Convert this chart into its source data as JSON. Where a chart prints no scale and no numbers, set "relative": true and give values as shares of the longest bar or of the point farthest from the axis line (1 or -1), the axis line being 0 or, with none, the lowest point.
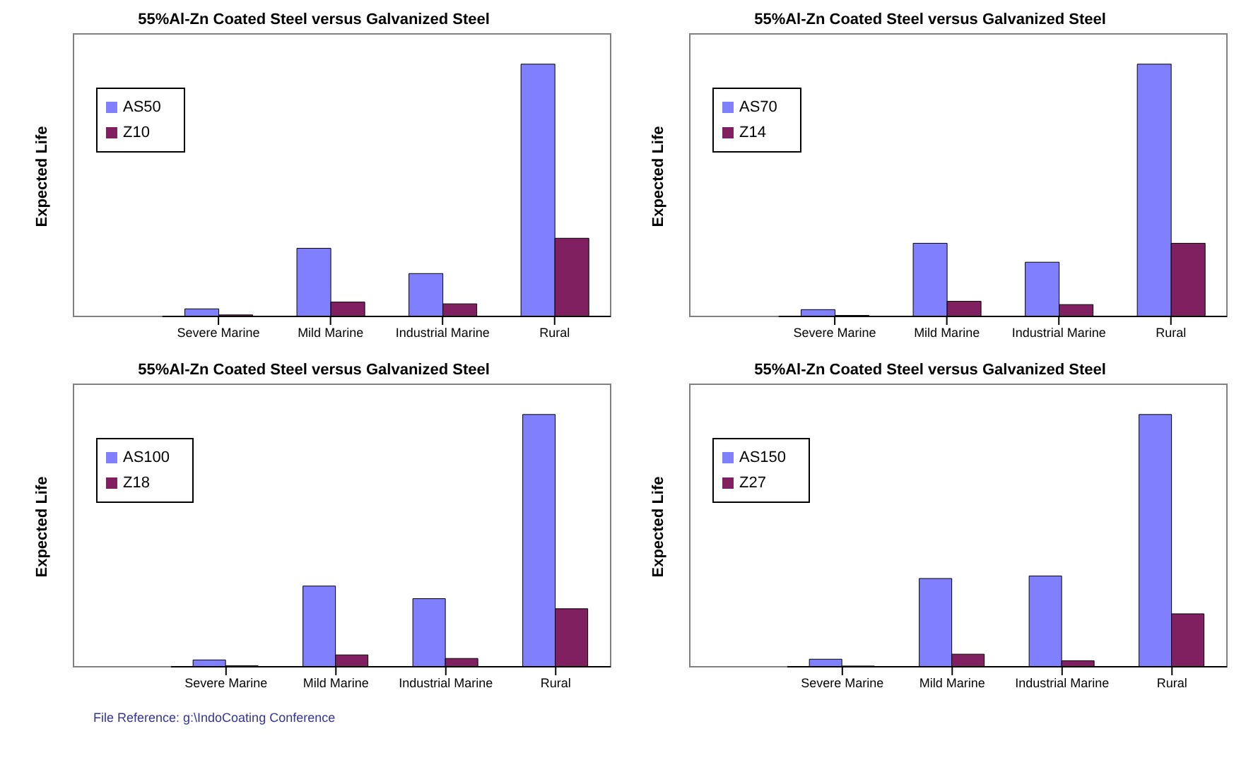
{
  "chart_data": [
    {
      "type": "bar",
      "title": "55%Al-Zn Coated Steel versus Galvanized Steel",
      "ylabel": "Expected Life",
      "relative": true,
      "legend": "top left",
      "categories": [
        "Severe Marine",
        "Mild Marine",
        "Industrial Marine",
        "Rural"
      ],
      "series": [
        {
          "name": "AS50",
          "color": "#8080ff",
          "values": [
            0.03,
            0.27,
            0.17,
            1
          ]
        },
        {
          "name": "Z10",
          "color": "#802060",
          "values": [
            0.006,
            0.057,
            0.05,
            0.31
          ]
        }
      ]
    },
    {
      "type": "bar",
      "title": "55%Al-Zn Coated Steel versus Galvanized Steel",
      "ylabel": "Expected Life",
      "relative": true,
      "legend": "top left",
      "categories": [
        "Severe Marine",
        "Mild Marine",
        "Industrial Marine",
        "Rural"
      ],
      "series": [
        {
          "name": "AS70",
          "color": "#8080ff",
          "values": [
            0.027,
            0.29,
            0.215,
            1
          ]
        },
        {
          "name": "Z14",
          "color": "#802060",
          "values": [
            0.004,
            0.06,
            0.047,
            0.29
          ]
        }
      ]
    },
    {
      "type": "bar",
      "title": "55%Al-Zn Coated Steel versus Galvanized Steel",
      "ylabel": "Expected Life",
      "relative": true,
      "legend": "top left",
      "categories": [
        "Severe Marine",
        "Mild Marine",
        "Industrial Marine",
        "Rural"
      ],
      "annotations": [
        "File Reference: g:\\IndoCoating Conference"
      ],
      "series": [
        {
          "name": "AS100",
          "color": "#8080ff",
          "values": [
            0.027,
            0.32,
            0.27,
            1
          ]
        },
        {
          "name": "Z18",
          "color": "#802060",
          "values": [
            0.004,
            0.047,
            0.033,
            0.23
          ]
        }
      ]
    },
    {
      "type": "bar",
      "title": "55%Al-Zn Coated Steel versus Galvanized Steel",
      "ylabel": "Expected Life",
      "relative": true,
      "legend": "top left",
      "categories": [
        "Severe Marine",
        "Mild Marine",
        "Industrial Marine",
        "Rural"
      ],
      "series": [
        {
          "name": "AS150",
          "color": "#8080ff",
          "values": [
            0.03,
            0.35,
            0.36,
            1
          ]
        },
        {
          "name": "Z27",
          "color": "#802060",
          "values": [
            0.003,
            0.05,
            0.024,
            0.21
          ]
        }
      ]
    }
  ]
}
